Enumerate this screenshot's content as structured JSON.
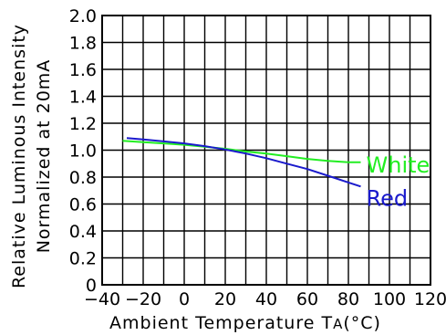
{
  "chart_data": {
    "type": "line",
    "title": "",
    "xlabel": "Ambient Temperature ",
    "xlabel_symbol": "T",
    "xlabel_subscript": "A",
    "xlabel_unit": "(°C)",
    "ylabel_line1": "Relative Luminous Intensity",
    "ylabel_line2": "Normalized at 20mA",
    "xlim": [
      -40,
      120
    ],
    "ylim": [
      0,
      2.0
    ],
    "x_ticks": [
      -40,
      -20,
      0,
      20,
      40,
      60,
      80,
      100,
      120
    ],
    "x_tick_labels": [
      "−40",
      "−20",
      "0",
      "20",
      "40",
      "60",
      "80",
      "100",
      "120"
    ],
    "y_ticks": [
      0,
      0.2,
      0.4,
      0.6,
      0.8,
      1.0,
      1.2,
      1.4,
      1.6,
      1.8,
      2.0
    ],
    "y_tick_labels": [
      "0",
      "0.2",
      "0.4",
      "0.6",
      "0.8",
      "1.0",
      "1.2",
      "1.4",
      "1.6",
      "1.8",
      "2.0"
    ],
    "grid": true,
    "series": [
      {
        "name": "White",
        "color": "#22ee22",
        "x": [
          -30,
          -20,
          -10,
          0,
          10,
          20,
          25,
          30,
          40,
          50,
          60,
          70,
          80,
          86
        ],
        "y": [
          1.07,
          1.06,
          1.05,
          1.04,
          1.025,
          1.01,
          1.0,
          0.99,
          0.975,
          0.955,
          0.935,
          0.92,
          0.91,
          0.91
        ]
      },
      {
        "name": "Red",
        "color": "#1a1acc",
        "x": [
          -28,
          -20,
          -10,
          0,
          10,
          20,
          25,
          30,
          40,
          50,
          60,
          70,
          80,
          86
        ],
        "y": [
          1.09,
          1.08,
          1.065,
          1.05,
          1.03,
          1.005,
          0.99,
          0.975,
          0.94,
          0.9,
          0.86,
          0.81,
          0.76,
          0.73
        ]
      }
    ]
  }
}
